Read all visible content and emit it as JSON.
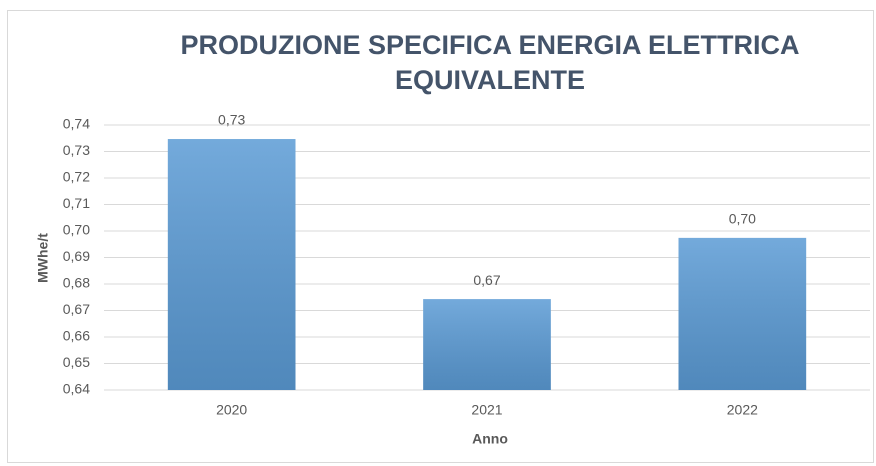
{
  "chart_data": {
    "type": "bar",
    "title": [
      "PRODUZIONE SPECIFICA ENERGIA ELETTRICA",
      "EQUIVALENTE"
    ],
    "x_label": "Anno",
    "y_label": "MWhe/t",
    "categories": [
      "2020",
      "2021",
      "2022"
    ],
    "values": [
      0.7347,
      0.6743,
      0.6974
    ],
    "value_labels": [
      "0,73",
      "0,67",
      "0,70"
    ],
    "color": "#5b9bd5",
    "ylim": [
      0.64,
      0.74
    ],
    "yticks": [
      {
        "value": 0.64,
        "label": "0,64"
      },
      {
        "value": 0.65,
        "label": "0,65"
      },
      {
        "value": 0.66,
        "label": "0,66"
      },
      {
        "value": 0.67,
        "label": "0,67"
      },
      {
        "value": 0.68,
        "label": "0,68"
      },
      {
        "value": 0.69,
        "label": "0,69"
      },
      {
        "value": 0.7,
        "label": "0,70"
      },
      {
        "value": 0.71,
        "label": "0,71"
      },
      {
        "value": 0.72,
        "label": "0,72"
      },
      {
        "value": 0.73,
        "label": "0,73"
      },
      {
        "value": 0.74,
        "label": "0,74"
      }
    ],
    "grid": true
  }
}
